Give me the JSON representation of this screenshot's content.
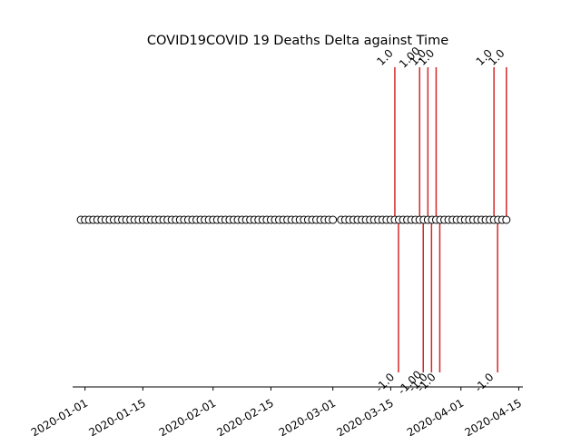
{
  "chart_data": {
    "type": "scatter",
    "title": "COVID19COVID 19 Deaths Delta against Time",
    "xlabel": "",
    "ylabel": "",
    "x_axis": {
      "scale": "date",
      "range": [
        "2019-12-29",
        "2020-04-16"
      ],
      "tick_labels": [
        "2020-01-01",
        "2020-01-15",
        "2020-02-01",
        "2020-02-15",
        "2020-03-01",
        "2020-03-15",
        "2020-04-01",
        "2020-04-15"
      ]
    },
    "y_axis_visible": false,
    "grid": false,
    "marker_series": {
      "start": "2019-12-31",
      "end": "2020-04-12",
      "step_days": 1,
      "missing": [
        "2020-03-02"
      ],
      "marker": "open-circle"
    },
    "events": [
      {
        "date": "2020-03-16",
        "value": "1.0",
        "label_display": "1.0",
        "direction": "up"
      },
      {
        "date": "2020-03-16",
        "value": "-1.0",
        "label_display": "-1.0",
        "direction": "down"
      },
      {
        "date": "2020-03-22",
        "value": "1.0",
        "label_display": "1.00",
        "direction": "up"
      },
      {
        "date": "2020-03-22",
        "value": "-1.0",
        "label_display": "-1.00",
        "direction": "down"
      },
      {
        "date": "2020-03-24",
        "value": "1.0",
        "label_display": "1.0",
        "direction": "up"
      },
      {
        "date": "2020-03-24",
        "value": "-1.0",
        "label_display": "-1.0",
        "direction": "down"
      },
      {
        "date": "2020-03-26",
        "value": "1.0",
        "label_display": "1.0",
        "direction": "up"
      },
      {
        "date": "2020-03-26",
        "value": "-1.0",
        "label_display": "-1.0",
        "direction": "down"
      },
      {
        "date": "2020-04-09",
        "value": "1.0",
        "label_display": "1.0",
        "direction": "up"
      },
      {
        "date": "2020-04-09",
        "value": "-1.0",
        "label_display": "-1.0",
        "direction": "down"
      },
      {
        "date": "2020-04-12",
        "value": "1.0",
        "label_display": "1.0",
        "direction": "up"
      }
    ],
    "colors": {
      "stem": "#d62728",
      "marker_edge": "#000000",
      "marker_fill": "#ffffff",
      "axis": "#000000"
    }
  }
}
